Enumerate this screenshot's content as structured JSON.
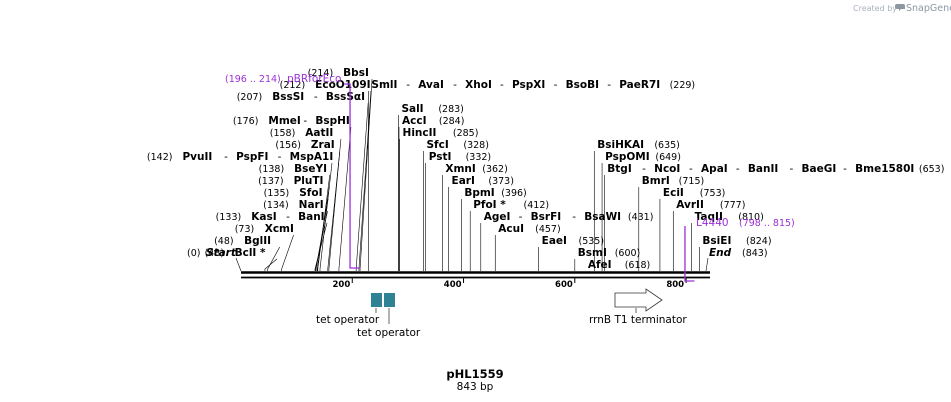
{
  "credit": {
    "prefix": "Created by",
    "brand": "SnapGene"
  },
  "map": {
    "name": "pHL1559",
    "length_label": "843 bp",
    "length_bp": 843,
    "ruler_ticks": [
      200,
      400,
      600,
      800
    ]
  },
  "labels": [
    {
      "pos": 43,
      "row": 0,
      "text": [
        "BclI *"
      ],
      "count": "(43)"
    },
    {
      "pos": 48,
      "row": 1,
      "text": [
        "BglII"
      ],
      "count": "(48)"
    },
    {
      "pos": 73,
      "row": 2,
      "text": [
        "XcmI"
      ],
      "count": "(73)"
    },
    {
      "pos": 133,
      "row": 3,
      "text": [
        "KasI",
        "BanI"
      ],
      "count": "(133)"
    },
    {
      "pos": 134,
      "row": 4,
      "text": [
        "NarI"
      ],
      "count": "(134)"
    },
    {
      "pos": 135,
      "row": 5,
      "text": [
        "SfoI"
      ],
      "count": "(135)"
    },
    {
      "pos": 137,
      "row": 6,
      "text": [
        "PluTI"
      ],
      "count": "(137)"
    },
    {
      "pos": 138,
      "row": 7,
      "text": [
        "BseYI"
      ],
      "count": "(138)"
    },
    {
      "pos": 142,
      "row": 8,
      "text": [
        "PvuII",
        "PspFI",
        "MspA1I"
      ],
      "count": "(142)"
    },
    {
      "pos": 156,
      "row": 9,
      "text": [
        "ZraI"
      ],
      "count": "(156)"
    },
    {
      "pos": 158,
      "row": 10,
      "text": [
        "AatII"
      ],
      "count": "(158)"
    },
    {
      "pos": 176,
      "row": 11,
      "text": [
        "MmeI",
        "BspHI"
      ],
      "count": "(176)"
    },
    {
      "pos": 207,
      "row": 13,
      "text": [
        "BssSI",
        "BssSαI"
      ],
      "count": "(207)"
    },
    {
      "pos": 212,
      "row": 14,
      "text": [
        "EcoO109I"
      ],
      "count": "(212)"
    },
    {
      "pos": 214,
      "row": 15,
      "text": [
        "BbsI"
      ],
      "count": "(214)"
    },
    {
      "pos": 229,
      "row": 14,
      "text": [
        "SmlI",
        "AvaI",
        "XhoI",
        "PspXI",
        "BsoBI",
        "PaeR7I"
      ],
      "count": "(229)",
      "trailing": true
    },
    {
      "pos": 283,
      "row": 12,
      "text": [
        "SalI"
      ],
      "count": "(283)",
      "trailing": true
    },
    {
      "pos": 284,
      "row": 11,
      "text": [
        "AccI"
      ],
      "count": "(284)",
      "trailing": true
    },
    {
      "pos": 285,
      "row": 10,
      "text": [
        "HincII"
      ],
      "count": "(285)",
      "trailing": true
    },
    {
      "pos": 328,
      "row": 9,
      "text": [
        "SfcI"
      ],
      "count": "(328)",
      "trailing": true
    },
    {
      "pos": 332,
      "row": 8,
      "text": [
        "PstI"
      ],
      "count": "(332)",
      "trailing": true
    },
    {
      "pos": 362,
      "row": 7,
      "text": [
        "XmnI"
      ],
      "count": "(362)",
      "trailing": true
    },
    {
      "pos": 373,
      "row": 6,
      "text": [
        "EarI"
      ],
      "count": "(373)",
      "trailing": true
    },
    {
      "pos": 396,
      "row": 5,
      "text": [
        "BpmI"
      ],
      "count": "(396)",
      "trailing": true
    },
    {
      "pos": 412,
      "row": 4,
      "text": [
        "PfoI *"
      ],
      "count": "(412)",
      "trailing": true
    },
    {
      "pos": 431,
      "row": 3,
      "text": [
        "AgeI",
        "BsrFI",
        "BsaWI"
      ],
      "count": "(431)",
      "trailing": true
    },
    {
      "pos": 457,
      "row": 2,
      "text": [
        "AcuI"
      ],
      "count": "(457)",
      "trailing": true
    },
    {
      "pos": 535,
      "row": 1,
      "text": [
        "EaeI"
      ],
      "count": "(535)",
      "trailing": true
    },
    {
      "pos": 600,
      "row": 0,
      "text": [
        "BsmI"
      ],
      "count": "(600)",
      "trailing": true
    },
    {
      "pos": 618,
      "row": -1,
      "text": [
        "AfeI"
      ],
      "count": "(618)",
      "trailing": true
    },
    {
      "pos": 635,
      "row": 9,
      "text": [
        "BsiHKAI"
      ],
      "count": "(635)",
      "trailing": true
    },
    {
      "pos": 649,
      "row": 8,
      "text": [
        "PspOMI"
      ],
      "count": "(649)",
      "trailing": true
    },
    {
      "pos": 653,
      "row": 7,
      "text": [
        "BtgI",
        "NcoI",
        "ApaI",
        "BanII",
        "BaeGI",
        "Bme1580I"
      ],
      "count": "(653)",
      "trailing": true
    },
    {
      "pos": 715,
      "row": 6,
      "text": [
        "BmrI"
      ],
      "count": "(715)",
      "trailing": true
    },
    {
      "pos": 753,
      "row": 5,
      "text": [
        "EciI"
      ],
      "count": "(753)",
      "trailing": true
    },
    {
      "pos": 777,
      "row": 4,
      "text": [
        "AvrII"
      ],
      "count": "(777)",
      "trailing": true
    },
    {
      "pos": 810,
      "row": 3,
      "text": [
        "TaqII"
      ],
      "count": "(810)",
      "trailing": true
    },
    {
      "pos": 824,
      "row": 1,
      "text": [
        "BsiEI"
      ],
      "count": "(824)",
      "trailing": true
    }
  ],
  "ends": {
    "start": {
      "count": "(0)",
      "text": "Start"
    },
    "end": {
      "count": "(843)",
      "text": "End"
    }
  },
  "primers": [
    {
      "name": "pBRforEco",
      "range": "(196 .. 214)",
      "from": 196,
      "to": 214
    },
    {
      "name": "L4440",
      "range": "(798 .. 815)",
      "from": 798,
      "to": 815
    }
  ],
  "features": [
    {
      "name": "tet operator",
      "from": 210,
      "to": 232,
      "color": "#2f8294"
    },
    {
      "name": "tet operator",
      "from": 234,
      "to": 256,
      "color": "#2f8294"
    },
    {
      "name": "rrnB T1 terminator",
      "from": 714,
      "to": 800,
      "color": "#ffffff"
    }
  ],
  "colors": {
    "primer": "#9b30d9",
    "feature": "#2f8294"
  }
}
